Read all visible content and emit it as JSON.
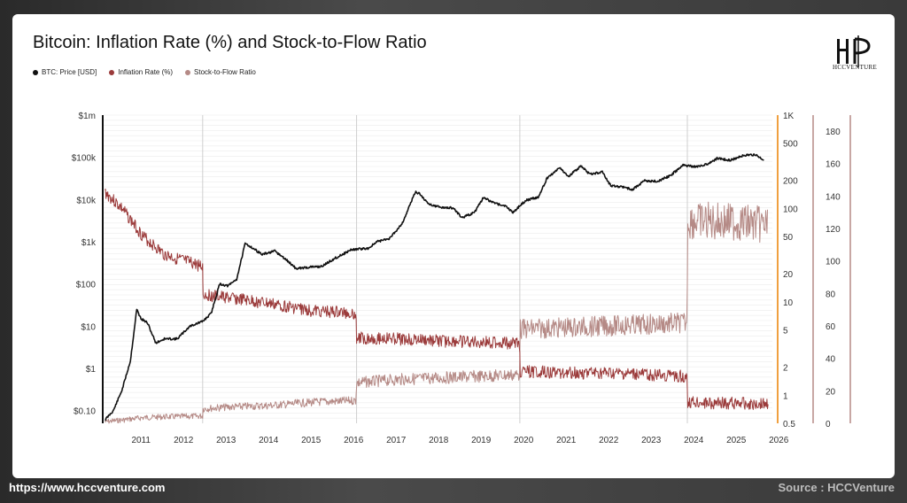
{
  "footer": {
    "url": "https://www.hccventure.com",
    "source": "Source : HCCVenture"
  },
  "logo": {
    "text": "HCCVENTURE"
  },
  "chart_data": {
    "type": "line",
    "title": "Bitcoin: Inflation Rate (%) and Stock-to-Flow Ratio",
    "legend": [
      {
        "name": "BTC: Price [USD]",
        "color": "#111111"
      },
      {
        "name": "Inflation Rate (%)",
        "color": "#9b3b3b"
      },
      {
        "name": "Stock-to-Flow Ratio",
        "color": "#b58a86"
      }
    ],
    "legend_placement": "top-left",
    "x_ticks": [
      "2011",
      "2012",
      "2013",
      "2014",
      "2015",
      "2016",
      "2017",
      "2018",
      "2019",
      "2020",
      "2021",
      "2022",
      "2023",
      "2024",
      "2025",
      "2026"
    ],
    "xlim": [
      2010.55,
      2026.3
    ],
    "y_left": {
      "scale": "log",
      "ticks": [
        "$0.10",
        "$1",
        "$10",
        "$100",
        "$1k",
        "$10k",
        "$100k",
        "$1m"
      ],
      "ylim": [
        0.05,
        1000000
      ]
    },
    "y_right_inflation": {
      "scale": "log",
      "ticks": [
        "0.5",
        "1",
        "2",
        "5",
        "10",
        "20",
        "50",
        "100",
        "200",
        "500",
        "1K"
      ],
      "ylim": [
        0.5,
        1000
      ],
      "color": "#f0a040"
    },
    "y_right_s2f": {
      "scale": "linear",
      "ticks": [
        "0",
        "20",
        "40",
        "60",
        "80",
        "100",
        "120",
        "140",
        "160",
        "180"
      ],
      "ylim": [
        0,
        190
      ]
    },
    "halvings": [
      2012.9,
      2016.52,
      2020.36,
      2024.3
    ],
    "series": [
      {
        "name": "BTC: Price [USD]",
        "axis": "price",
        "x": [
          2010.6,
          2010.8,
          2011.0,
          2011.2,
          2011.35,
          2011.45,
          2011.6,
          2011.8,
          2012.0,
          2012.3,
          2012.6,
          2012.9,
          2013.1,
          2013.3,
          2013.5,
          2013.7,
          2013.9,
          2014.0,
          2014.3,
          2014.6,
          2014.9,
          2015.1,
          2015.4,
          2015.7,
          2016.0,
          2016.4,
          2016.8,
          2017.0,
          2017.3,
          2017.6,
          2017.9,
          2018.0,
          2018.2,
          2018.5,
          2018.8,
          2019.0,
          2019.3,
          2019.5,
          2019.8,
          2020.0,
          2020.2,
          2020.5,
          2020.8,
          2021.0,
          2021.3,
          2021.5,
          2021.8,
          2022.0,
          2022.3,
          2022.5,
          2022.8,
          2023.0,
          2023.3,
          2023.6,
          2023.9,
          2024.2,
          2024.5,
          2024.8,
          2025.0,
          2025.3,
          2025.6,
          2025.9,
          2026.1
        ],
        "values": [
          0.06,
          0.1,
          0.3,
          1.5,
          25,
          15,
          12,
          4,
          5,
          5,
          10,
          13,
          20,
          100,
          90,
          130,
          900,
          800,
          500,
          600,
          350,
          230,
          250,
          260,
          400,
          650,
          700,
          1000,
          1200,
          2800,
          15000,
          14000,
          8000,
          6500,
          6300,
          3700,
          5000,
          11000,
          8000,
          7200,
          5000,
          9500,
          11500,
          32000,
          58000,
          35000,
          62000,
          40000,
          45000,
          21000,
          20000,
          17000,
          28000,
          27000,
          37000,
          65000,
          60000,
          70000,
          95000,
          85000,
          110000,
          115000,
          85000
        ]
      },
      {
        "name": "Inflation Rate (%)",
        "axis": "inflation",
        "x": [
          2010.6,
          2011.0,
          2011.5,
          2012.0,
          2012.5,
          2012.9,
          2012.91,
          2013.5,
          2014.5,
          2015.5,
          2016.5,
          2016.52,
          2017.5,
          2018.5,
          2019.5,
          2020.35,
          2020.37,
          2021.5,
          2022.5,
          2023.5,
          2024.29,
          2024.31,
          2025.5,
          2026.2
        ],
        "values": [
          150,
          100,
          50,
          32,
          27,
          24,
          12,
          11,
          9.5,
          8,
          7.5,
          4.1,
          4.0,
          3.8,
          3.7,
          3.6,
          1.8,
          1.75,
          1.7,
          1.65,
          1.6,
          0.83,
          0.82,
          0.8
        ]
      },
      {
        "name": "Stock-to-Flow Ratio",
        "axis": "s2f",
        "x": [
          2010.6,
          2011.0,
          2011.5,
          2012.0,
          2012.5,
          2012.9,
          2012.91,
          2013.5,
          2014.5,
          2015.5,
          2016.5,
          2016.52,
          2017.5,
          2018.5,
          2019.5,
          2020.35,
          2020.37,
          2021.5,
          2022.5,
          2023.5,
          2024.29,
          2024.31,
          2025.5,
          2026.2
        ],
        "values": [
          1,
          2,
          3.5,
          4,
          4.2,
          4.5,
          9,
          10,
          11,
          13,
          14,
          25,
          27,
          28,
          29,
          30,
          58,
          59,
          60,
          61,
          62,
          125,
          124,
          122
        ]
      }
    ]
  }
}
